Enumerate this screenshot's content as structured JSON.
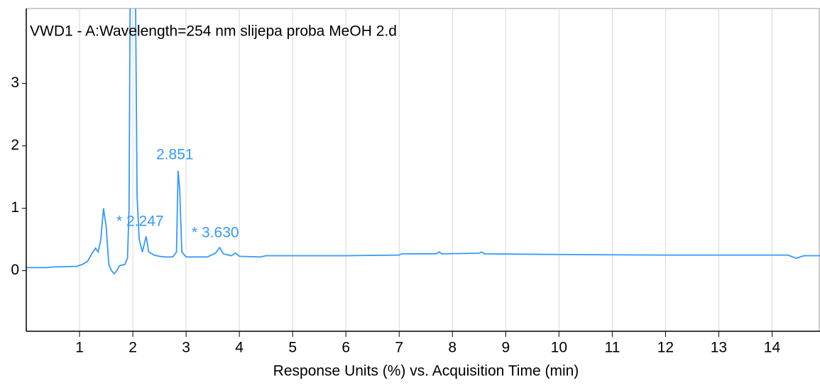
{
  "chart_data": {
    "type": "line",
    "title": "VWD1 - A:Wavelength=254 nm slijepa proba MeOH 2.d",
    "x_label": "Response Units (%) vs. Acquisition Time (min)",
    "annotations": [
      "2.851",
      "* 2.247",
      "* 3.630"
    ],
    "xlim": [
      0,
      14.9
    ],
    "ylim": [
      -0.97,
      4.2
    ],
    "xticks": [
      1,
      2,
      3,
      4,
      5,
      6,
      7,
      8,
      9,
      10,
      11,
      12,
      13,
      14
    ],
    "yticks": [
      0,
      1,
      2,
      3
    ],
    "grid": true,
    "series": [
      {
        "color": "#3399ff",
        "x": [
          0,
          0.4,
          0.5,
          0.95,
          1.05,
          1.15,
          1.25,
          1.3,
          1.35,
          1.4,
          1.45,
          1.5,
          1.55,
          1.6,
          1.65,
          1.7,
          1.75,
          1.85,
          1.9,
          1.93,
          1.95,
          2.0,
          2.05,
          2.08,
          2.12,
          2.18,
          2.25,
          2.3,
          2.4,
          2.5,
          2.6,
          2.75,
          2.82,
          2.85,
          2.88,
          2.92,
          3.0,
          3.4,
          3.55,
          3.63,
          3.7,
          3.85,
          3.93,
          4.0,
          4.4,
          4.5,
          5,
          6,
          7,
          7.05,
          7.7,
          7.75,
          7.8,
          8.5,
          8.55,
          8.6,
          10,
          12,
          14.3,
          14.45,
          14.6,
          14.9
        ],
        "values": [
          0.05,
          0.05,
          0.06,
          0.07,
          0.1,
          0.15,
          0.3,
          0.36,
          0.3,
          0.5,
          1.0,
          0.7,
          0.1,
          0.0,
          -0.05,
          0.0,
          0.08,
          0.1,
          0.2,
          1.0,
          4.5,
          4.5,
          4.5,
          1.2,
          0.5,
          0.3,
          0.55,
          0.3,
          0.25,
          0.23,
          0.22,
          0.22,
          0.3,
          1.6,
          1.3,
          0.3,
          0.22,
          0.22,
          0.28,
          0.37,
          0.27,
          0.24,
          0.28,
          0.23,
          0.22,
          0.24,
          0.24,
          0.24,
          0.25,
          0.27,
          0.27,
          0.3,
          0.27,
          0.28,
          0.3,
          0.27,
          0.26,
          0.25,
          0.25,
          0.2,
          0.24,
          0.24
        ]
      }
    ]
  }
}
